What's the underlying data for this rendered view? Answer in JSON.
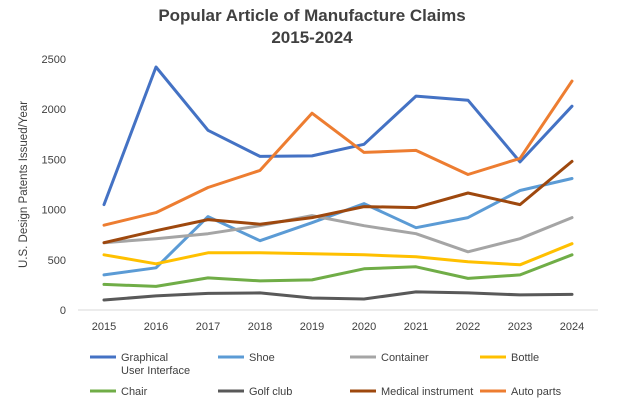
{
  "chart_data": {
    "type": "line",
    "title_lines": [
      "Popular Article of Manufacture Claims",
      "2015-2024"
    ],
    "xlabel": "",
    "ylabel": "U.S. Design Patents Issued/Year",
    "categories": [
      "2015",
      "2016",
      "2017",
      "2018",
      "2019",
      "2020",
      "2021",
      "2022",
      "2023",
      "2024"
    ],
    "ylim": [
      0,
      2500
    ],
    "yticks": [
      0,
      500,
      1000,
      1500,
      2000,
      2500
    ],
    "ytick_labels": [
      "0",
      "500",
      "1000",
      "1500",
      "2000",
      "2500"
    ],
    "grid": false,
    "legend_position": "bottom",
    "series": [
      {
        "name": "Graphical User Interface",
        "name_lines": [
          "Graphical",
          "User Interface"
        ],
        "color": "#4472C4",
        "values": [
          1050,
          2420,
          1790,
          1530,
          1535,
          1650,
          2130,
          2090,
          1475,
          2030
        ]
      },
      {
        "name": "Shoe",
        "name_lines": [
          "Shoe"
        ],
        "color": "#5B9BD5",
        "values": [
          350,
          420,
          930,
          690,
          870,
          1060,
          820,
          920,
          1190,
          1310
        ]
      },
      {
        "name": "Container",
        "name_lines": [
          "Container"
        ],
        "color": "#A5A5A5",
        "values": [
          670,
          710,
          760,
          840,
          940,
          840,
          760,
          580,
          710,
          920
        ]
      },
      {
        "name": "Bottle",
        "name_lines": [
          "Bottle"
        ],
        "color": "#FFC000",
        "values": [
          550,
          460,
          570,
          570,
          560,
          550,
          530,
          480,
          450,
          660
        ]
      },
      {
        "name": "Chair",
        "name_lines": [
          "Chair"
        ],
        "color": "#70AD47",
        "values": [
          255,
          235,
          320,
          290,
          300,
          410,
          430,
          315,
          350,
          550
        ]
      },
      {
        "name": "Golf club",
        "name_lines": [
          "Golf club"
        ],
        "color": "#595959",
        "values": [
          100,
          140,
          165,
          170,
          120,
          110,
          180,
          170,
          150,
          155
        ]
      },
      {
        "name": "Medical instrument",
        "name_lines": [
          "Medical instrument"
        ],
        "color": "#9E480E",
        "values": [
          670,
          790,
          900,
          855,
          920,
          1030,
          1020,
          1165,
          1050,
          1480
        ]
      },
      {
        "name": "Auto parts",
        "name_lines": [
          "Auto parts"
        ],
        "color": "#ED7D31",
        "values": [
          845,
          970,
          1220,
          1390,
          1960,
          1570,
          1590,
          1350,
          1510,
          2280
        ]
      }
    ]
  }
}
